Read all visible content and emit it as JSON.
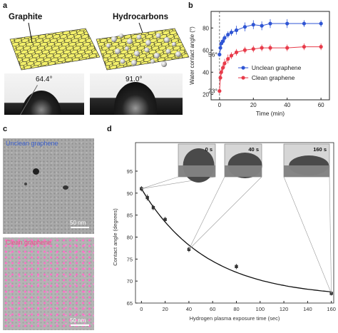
{
  "panel_a": {
    "letter": "a",
    "graphite_label": "Graphite",
    "hydrocarbons_label": "Hydrocarbons",
    "angle_left": "64.4°",
    "angle_right": "91.0°"
  },
  "panel_b": {
    "letter": "b",
    "annotation_56": "56°",
    "annotation_23": "23°"
  },
  "panel_c": {
    "letter": "c",
    "unclean_label": "Unclean graphene",
    "clean_label": "Clean graphene",
    "scale_top": "50 nm",
    "scale_bottom": "50 nm",
    "unclean_color": "#3a5fcd",
    "clean_color": "#ff3c8c"
  },
  "panel_d": {
    "letter": "d",
    "inset_times": [
      "0 s",
      "40 s",
      "160 s"
    ]
  },
  "chart_data": [
    {
      "type": "scatter",
      "title": "",
      "xlabel": "Time (min)",
      "ylabel": "Water contact angle (°)",
      "xlim": [
        -5,
        65
      ],
      "ylim": [
        15,
        95
      ],
      "xticks": [
        0,
        20,
        40,
        60
      ],
      "yticks": [
        20,
        40,
        60,
        80
      ],
      "legend_position": "lower-right",
      "series": [
        {
          "name": "Unclean graphene",
          "color": "#2f55d4",
          "x": [
            0,
            0.5,
            1,
            2,
            3,
            5,
            7,
            10,
            15,
            20,
            25,
            30,
            40,
            50,
            60
          ],
          "y": [
            56,
            62,
            66,
            68,
            71,
            74,
            76,
            78,
            81,
            83,
            82,
            84,
            84,
            84,
            84
          ],
          "err": [
            2,
            3,
            3,
            3,
            3,
            3,
            3,
            4,
            4,
            4,
            4,
            4,
            4,
            3,
            3
          ]
        },
        {
          "name": "Clean graphene",
          "color": "#e83b4a",
          "x": [
            0,
            0.5,
            1,
            2,
            3,
            5,
            7,
            10,
            15,
            20,
            25,
            30,
            40,
            50,
            60
          ],
          "y": [
            23,
            35,
            40,
            44,
            48,
            52,
            55,
            58,
            60,
            61,
            62,
            62,
            62,
            63,
            63
          ],
          "err": [
            2,
            3,
            3,
            3,
            4,
            4,
            3,
            3,
            3,
            3,
            3,
            3,
            3,
            3,
            3
          ]
        }
      ]
    },
    {
      "type": "scatter",
      "title": "",
      "xlabel": "Hydrogen plasma exposure time (sec)",
      "ylabel": "Contact angle (degrees)",
      "xlim": [
        -5,
        162
      ],
      "ylim": [
        65,
        95
      ],
      "xticks": [
        0,
        20,
        40,
        60,
        80,
        100,
        120,
        140,
        160
      ],
      "yticks": [
        65,
        70,
        75,
        80,
        85,
        90,
        95
      ],
      "series": [
        {
          "name": "",
          "color": "#222222",
          "x": [
            0,
            5,
            10,
            20,
            40,
            80,
            160
          ],
          "y": [
            91,
            89,
            86.7,
            84,
            77.2,
            73.3,
            67.2
          ],
          "err": [
            0.6,
            0.7,
            0.6,
            0.6,
            0.6,
            0.6,
            0.5
          ]
        }
      ]
    }
  ]
}
